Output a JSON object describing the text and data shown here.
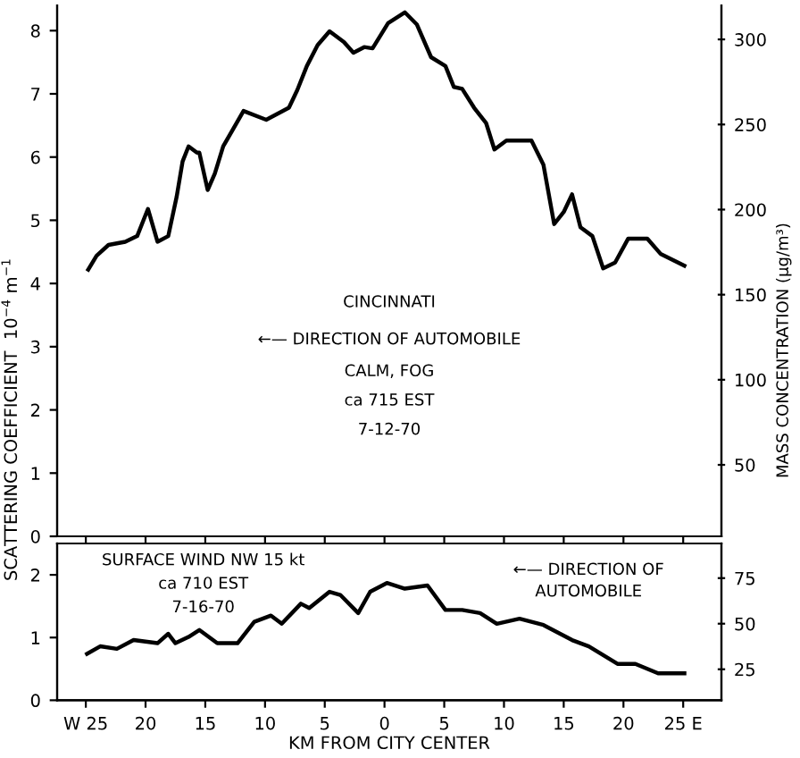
{
  "chart_data": [
    {
      "type": "line",
      "ylabel": "SCATTERING COEFFICIENT  10$^{−4}$ m$^{−1}$",
      "y2label": "MASS CONCENTRATION (μg/m³)",
      "x": [
        -24.8,
        -24.1,
        -23.1,
        -21.7,
        -20.7,
        -19.8,
        -19.0,
        -18.1,
        -17.4,
        -16.9,
        -16.4,
        -15.7,
        -15.5,
        -14.8,
        -14.2,
        -13.5,
        -11.8,
        -9.9,
        -8.0,
        -7.3,
        -6.5,
        -5.6,
        -4.6,
        -3.4,
        -2.6,
        -1.7,
        -1.0,
        0.3,
        1.7,
        2.7,
        3.9,
        5.1,
        5.8,
        6.5,
        7.5,
        8.5,
        9.2,
        10.2,
        12.3,
        13.3,
        14.2,
        15.0,
        15.7,
        16.4,
        17.4,
        18.3,
        19.3,
        20.4,
        22.0,
        23.1,
        25.1
      ],
      "values": [
        4.22,
        4.44,
        4.61,
        4.66,
        4.75,
        5.18,
        4.66,
        4.75,
        5.37,
        5.93,
        6.17,
        6.07,
        6.07,
        5.48,
        5.74,
        6.17,
        6.73,
        6.59,
        6.78,
        7.06,
        7.44,
        7.77,
        7.99,
        7.82,
        7.65,
        7.74,
        7.72,
        8.12,
        8.29,
        8.1,
        7.58,
        7.44,
        7.11,
        7.08,
        6.78,
        6.54,
        6.12,
        6.26,
        6.26,
        5.88,
        4.94,
        5.13,
        5.41,
        4.89,
        4.75,
        4.24,
        4.33,
        4.71,
        4.71,
        4.47,
        4.28
      ],
      "color": "#000000",
      "xlim": [
        -27.4,
        28.2
      ],
      "ylim": [
        0,
        8.4
      ],
      "yticks": [
        0,
        1,
        2,
        3,
        4,
        5,
        6,
        7,
        8
      ],
      "xticks": [
        {
          "value": -25,
          "label": null
        },
        {
          "value": -20,
          "label": null
        },
        {
          "value": -15,
          "label": null
        },
        {
          "value": -10,
          "label": null
        },
        {
          "value": -5,
          "label": null
        },
        {
          "value": 0,
          "label": null
        },
        {
          "value": 5,
          "label": null
        },
        {
          "value": 10,
          "label": null
        },
        {
          "value": 15,
          "label": null
        },
        {
          "value": 20,
          "label": null
        },
        {
          "value": 25,
          "label": null
        }
      ],
      "y2lim": [
        8,
        320
      ],
      "y2ticks": [
        50,
        100,
        150,
        200,
        250,
        300
      ],
      "tick_labels": "y",
      "grid": false,
      "legend": false,
      "annotations": [
        "CINCINNATI",
        "←— DIRECTION OF AUTOMOBILE",
        "CALM, FOG",
        "ca 715 EST",
        "7-12-70"
      ]
    },
    {
      "type": "line",
      "xlabel": "KM FROM CITY CENTER",
      "x": [
        -24.9,
        -23.8,
        -22.4,
        -21.0,
        -19.0,
        -18.1,
        -17.5,
        -16.4,
        -15.5,
        -14.0,
        -12.3,
        -10.9,
        -9.5,
        -8.6,
        -7.0,
        -6.3,
        -4.6,
        -3.7,
        -2.2,
        -1.2,
        0.2,
        1.7,
        3.6,
        5.1,
        6.5,
        8.0,
        9.4,
        11.3,
        13.3,
        15.7,
        17.1,
        19.5,
        21.0,
        22.9,
        25.1
      ],
      "values": [
        0.74,
        0.86,
        0.82,
        0.96,
        0.91,
        1.06,
        0.91,
        1.01,
        1.12,
        0.91,
        0.91,
        1.25,
        1.35,
        1.22,
        1.54,
        1.47,
        1.73,
        1.68,
        1.39,
        1.73,
        1.87,
        1.78,
        1.83,
        1.44,
        1.44,
        1.39,
        1.22,
        1.3,
        1.2,
        0.96,
        0.86,
        0.58,
        0.58,
        0.43,
        0.43
      ],
      "color": "#000000",
      "xlim": [
        -27.4,
        28.2
      ],
      "ylim": [
        0,
        2.5
      ],
      "yticks": [
        0,
        1,
        2
      ],
      "xticks": [
        {
          "value": -25,
          "label": "W 25"
        },
        {
          "value": -20,
          "label": "20"
        },
        {
          "value": -15,
          "label": "15"
        },
        {
          "value": -10,
          "label": "10"
        },
        {
          "value": -5,
          "label": "5"
        },
        {
          "value": 0,
          "label": "0"
        },
        {
          "value": 5,
          "label": "5"
        },
        {
          "value": 10,
          "label": "10"
        },
        {
          "value": 15,
          "label": "15"
        },
        {
          "value": 20,
          "label": "20"
        },
        {
          "value": 25,
          "label": "25 E"
        }
      ],
      "y2lim": [
        8,
        94
      ],
      "y2ticks": [
        25,
        50,
        75
      ],
      "grid": false,
      "legend": false,
      "annotations": [
        "SURFACE WIND NW 15 kt",
        "ca 710 EST",
        "7-16-70",
        "←— DIRECTION OF\nAUTOMOBILE"
      ]
    }
  ]
}
